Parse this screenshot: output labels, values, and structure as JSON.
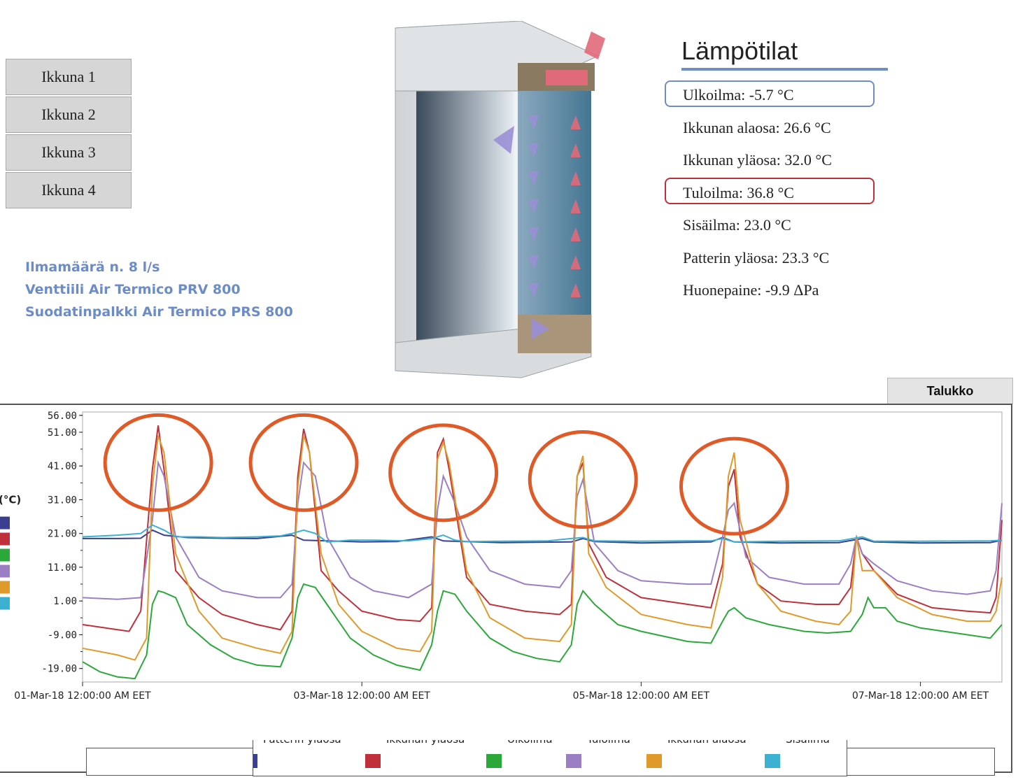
{
  "window_buttons": [
    {
      "label": "Ikkuna 1"
    },
    {
      "label": "Ikkuna 2"
    },
    {
      "label": "Ikkuna 3"
    },
    {
      "label": "Ikkuna 4"
    }
  ],
  "info": {
    "line1": "Ilmamäärä n. 8 l/s",
    "line2": "Venttiili Air Termico PRV 800",
    "line3": "Suodatinpalkki Air Termico PRS 800"
  },
  "temps": {
    "title": "Lämpötilat",
    "items": [
      {
        "label": "Ulkoilma: -5.7 °C",
        "highlight": "#6f8dc4"
      },
      {
        "label": "Ikkunan alaosa: 26.6 °C"
      },
      {
        "label": "Ikkunan yläosa: 32.0 °C"
      },
      {
        "label": "Tuloilma: 36.8 °C",
        "highlight": "#c0303a"
      },
      {
        "label": "Sisäilma: 23.0 °C"
      },
      {
        "label": "Patterin yläosa: 23.3 °C"
      },
      {
        "label": "Huonepaine: -9.9 ΔPa"
      }
    ]
  },
  "table_tab": {
    "label": "Talukko"
  },
  "chart_data": {
    "type": "line",
    "ylabel": "(°C)",
    "y_ticks": [
      "56.00",
      "51.00",
      "41.00",
      "31.00",
      "21.00",
      "11.00",
      "1.00",
      "-9.00",
      "-19.00"
    ],
    "ylim": [
      -23,
      57
    ],
    "x_tick_labels": [
      {
        "label": "01-Mar-18 12:00:00 AM EET",
        "x": 0
      },
      {
        "label": "03-Mar-18 12:00:00 AM EET",
        "x": 48
      },
      {
        "label": "05-Mar-18 12:00:00 AM EET",
        "x": 96
      },
      {
        "label": "07-Mar-18 12:00:00 AM EET",
        "x": 144
      }
    ],
    "x_unit": "hours since 01-Mar-18 00:00",
    "xlim": [
      0,
      158
    ],
    "series": [
      {
        "name": "Patterin yläosa",
        "color": "#3a3f91",
        "points": [
          [
            0,
            19.5
          ],
          [
            6,
            19.5
          ],
          [
            10,
            19.6
          ],
          [
            12,
            22
          ],
          [
            14,
            20.5
          ],
          [
            18,
            19.8
          ],
          [
            24,
            19.6
          ],
          [
            30,
            19.5
          ],
          [
            36,
            20.5
          ],
          [
            38,
            19
          ],
          [
            48,
            18.5
          ],
          [
            54,
            18.6
          ],
          [
            60,
            20
          ],
          [
            62,
            18.8
          ],
          [
            72,
            18.3
          ],
          [
            84,
            18.5
          ],
          [
            86,
            19.5
          ],
          [
            88,
            18.6
          ],
          [
            96,
            18.2
          ],
          [
            108,
            18.5
          ],
          [
            110,
            19.8
          ],
          [
            112,
            18.5
          ],
          [
            120,
            18.2
          ],
          [
            130,
            18.3
          ],
          [
            134,
            19.5
          ],
          [
            136,
            18.5
          ],
          [
            144,
            18.2
          ],
          [
            156,
            18.3
          ],
          [
            158,
            19
          ]
        ]
      },
      {
        "name": "Ikkunan yläosa",
        "color": "#c0303a",
        "points": [
          [
            0,
            -6
          ],
          [
            6,
            -7.5
          ],
          [
            8,
            -8
          ],
          [
            10,
            -2
          ],
          [
            12,
            40
          ],
          [
            13,
            53
          ],
          [
            14,
            40
          ],
          [
            16,
            10
          ],
          [
            20,
            2
          ],
          [
            24,
            -3
          ],
          [
            30,
            -6
          ],
          [
            34,
            -7.5
          ],
          [
            36,
            -2
          ],
          [
            37,
            38
          ],
          [
            38,
            52
          ],
          [
            39,
            45
          ],
          [
            41,
            10
          ],
          [
            44,
            4
          ],
          [
            48,
            -2
          ],
          [
            54,
            -4.5
          ],
          [
            58,
            -5
          ],
          [
            60,
            -1
          ],
          [
            61,
            45
          ],
          [
            62,
            49
          ],
          [
            63,
            40
          ],
          [
            66,
            8
          ],
          [
            70,
            0
          ],
          [
            76,
            -2
          ],
          [
            82,
            -3
          ],
          [
            84,
            0
          ],
          [
            85,
            38
          ],
          [
            86,
            42
          ],
          [
            87,
            18
          ],
          [
            90,
            8
          ],
          [
            96,
            2
          ],
          [
            104,
            0
          ],
          [
            108,
            -1
          ],
          [
            110,
            12
          ],
          [
            111,
            35
          ],
          [
            112,
            40
          ],
          [
            113,
            20
          ],
          [
            116,
            6
          ],
          [
            120,
            1
          ],
          [
            126,
            0
          ],
          [
            130,
            0
          ],
          [
            132,
            5
          ],
          [
            133,
            20
          ],
          [
            134,
            15
          ],
          [
            136,
            10
          ],
          [
            140,
            3
          ],
          [
            146,
            -1
          ],
          [
            152,
            -2
          ],
          [
            156,
            -2.5
          ],
          [
            157,
            2
          ],
          [
            158,
            25
          ]
        ]
      },
      {
        "name": "Ulkoilma",
        "color": "#2aa83a",
        "points": [
          [
            0,
            -17
          ],
          [
            3,
            -20
          ],
          [
            6,
            -21.5
          ],
          [
            9,
            -22
          ],
          [
            11,
            -15
          ],
          [
            12,
            0
          ],
          [
            13,
            4
          ],
          [
            14,
            3.5
          ],
          [
            16,
            2
          ],
          [
            18,
            -6
          ],
          [
            22,
            -12
          ],
          [
            26,
            -16
          ],
          [
            30,
            -18
          ],
          [
            34,
            -18.5
          ],
          [
            36,
            -10
          ],
          [
            37,
            2
          ],
          [
            38,
            6
          ],
          [
            40,
            5
          ],
          [
            42,
            0
          ],
          [
            46,
            -10
          ],
          [
            50,
            -15
          ],
          [
            54,
            -18
          ],
          [
            58,
            -19.5
          ],
          [
            60,
            -12
          ],
          [
            61,
            -2
          ],
          [
            62,
            4
          ],
          [
            64,
            3
          ],
          [
            66,
            -2
          ],
          [
            70,
            -10
          ],
          [
            74,
            -14
          ],
          [
            78,
            -16
          ],
          [
            82,
            -17
          ],
          [
            84,
            -12
          ],
          [
            85,
            0
          ],
          [
            86,
            4
          ],
          [
            88,
            0
          ],
          [
            92,
            -6
          ],
          [
            96,
            -8
          ],
          [
            104,
            -11
          ],
          [
            108,
            -11.5
          ],
          [
            110,
            -5
          ],
          [
            111,
            -2
          ],
          [
            112,
            -1
          ],
          [
            114,
            -4
          ],
          [
            118,
            -6
          ],
          [
            124,
            -8
          ],
          [
            128,
            -8.5
          ],
          [
            132,
            -8
          ],
          [
            134,
            -3
          ],
          [
            135,
            2
          ],
          [
            136,
            -1
          ],
          [
            138,
            -1
          ],
          [
            140,
            -5
          ],
          [
            144,
            -7
          ],
          [
            150,
            -8.5
          ],
          [
            156,
            -10
          ],
          [
            158,
            -6
          ]
        ]
      },
      {
        "name": "Tuloilma",
        "color": "#9b7fc4",
        "points": [
          [
            0,
            2
          ],
          [
            6,
            1.5
          ],
          [
            10,
            2
          ],
          [
            12,
            25
          ],
          [
            13,
            42
          ],
          [
            14,
            38
          ],
          [
            16,
            20
          ],
          [
            20,
            8
          ],
          [
            24,
            4
          ],
          [
            30,
            2
          ],
          [
            34,
            2
          ],
          [
            36,
            6
          ],
          [
            37,
            30
          ],
          [
            38,
            42
          ],
          [
            40,
            38
          ],
          [
            42,
            20
          ],
          [
            46,
            8
          ],
          [
            50,
            4
          ],
          [
            56,
            2
          ],
          [
            60,
            6
          ],
          [
            61,
            28
          ],
          [
            62,
            38
          ],
          [
            64,
            30
          ],
          [
            66,
            20
          ],
          [
            70,
            10
          ],
          [
            76,
            6
          ],
          [
            82,
            5
          ],
          [
            84,
            10
          ],
          [
            85,
            32
          ],
          [
            86,
            37
          ],
          [
            88,
            18
          ],
          [
            92,
            10
          ],
          [
            96,
            7
          ],
          [
            104,
            6
          ],
          [
            108,
            6
          ],
          [
            110,
            20
          ],
          [
            111,
            28
          ],
          [
            112,
            30
          ],
          [
            114,
            14
          ],
          [
            118,
            8
          ],
          [
            124,
            6
          ],
          [
            130,
            6
          ],
          [
            132,
            12
          ],
          [
            133,
            20
          ],
          [
            134,
            15
          ],
          [
            136,
            12
          ],
          [
            140,
            7
          ],
          [
            146,
            4
          ],
          [
            152,
            3
          ],
          [
            156,
            4
          ],
          [
            157,
            10
          ],
          [
            158,
            30
          ]
        ]
      },
      {
        "name": "Ikkunan alaosa",
        "color": "#e09a2a",
        "points": [
          [
            0,
            -13
          ],
          [
            6,
            -15
          ],
          [
            9,
            -16.5
          ],
          [
            11,
            -10
          ],
          [
            12,
            35
          ],
          [
            13,
            50
          ],
          [
            14,
            45
          ],
          [
            16,
            15
          ],
          [
            20,
            -2
          ],
          [
            24,
            -10
          ],
          [
            30,
            -13
          ],
          [
            34,
            -14.5
          ],
          [
            36,
            -8
          ],
          [
            37,
            35
          ],
          [
            38,
            50
          ],
          [
            39,
            45
          ],
          [
            41,
            15
          ],
          [
            44,
            0
          ],
          [
            48,
            -8
          ],
          [
            54,
            -13
          ],
          [
            58,
            -14
          ],
          [
            60,
            -8
          ],
          [
            61,
            43
          ],
          [
            62,
            48
          ],
          [
            63,
            42
          ],
          [
            66,
            10
          ],
          [
            70,
            -4
          ],
          [
            76,
            -10
          ],
          [
            82,
            -11
          ],
          [
            84,
            -6
          ],
          [
            85,
            38
          ],
          [
            86,
            44
          ],
          [
            87,
            15
          ],
          [
            90,
            5
          ],
          [
            96,
            -3
          ],
          [
            104,
            -6
          ],
          [
            108,
            -7
          ],
          [
            110,
            8
          ],
          [
            111,
            38
          ],
          [
            112,
            45
          ],
          [
            113,
            25
          ],
          [
            116,
            6
          ],
          [
            120,
            -2
          ],
          [
            126,
            -5
          ],
          [
            130,
            -6
          ],
          [
            132,
            -2
          ],
          [
            133,
            20
          ],
          [
            134,
            10
          ],
          [
            136,
            10
          ],
          [
            140,
            2
          ],
          [
            146,
            -3
          ],
          [
            152,
            -5
          ],
          [
            156,
            -5
          ],
          [
            157,
            -2
          ],
          [
            158,
            8
          ]
        ]
      },
      {
        "name": "Sisäilma",
        "color": "#3bb0d0",
        "points": [
          [
            0,
            20
          ],
          [
            6,
            20.5
          ],
          [
            10,
            21
          ],
          [
            12,
            23.5
          ],
          [
            14,
            22
          ],
          [
            16,
            20
          ],
          [
            20,
            20
          ],
          [
            24,
            19.8
          ],
          [
            30,
            20
          ],
          [
            34,
            20.3
          ],
          [
            36,
            21
          ],
          [
            38,
            22
          ],
          [
            40,
            21
          ],
          [
            42,
            18.5
          ],
          [
            46,
            19
          ],
          [
            50,
            19
          ],
          [
            56,
            18.8
          ],
          [
            60,
            19.5
          ],
          [
            62,
            20.5
          ],
          [
            64,
            19
          ],
          [
            66,
            18.6
          ],
          [
            72,
            18.7
          ],
          [
            80,
            18.8
          ],
          [
            84,
            19.5
          ],
          [
            86,
            19.8
          ],
          [
            88,
            18.8
          ],
          [
            96,
            18.7
          ],
          [
            104,
            18.8
          ],
          [
            108,
            18.8
          ],
          [
            110,
            19.5
          ],
          [
            112,
            18.5
          ],
          [
            120,
            18.7
          ],
          [
            130,
            18.8
          ],
          [
            134,
            20
          ],
          [
            136,
            18.7
          ],
          [
            144,
            18.7
          ],
          [
            156,
            18.8
          ],
          [
            158,
            19
          ]
        ]
      }
    ],
    "legend_placement": "bottom-center"
  }
}
